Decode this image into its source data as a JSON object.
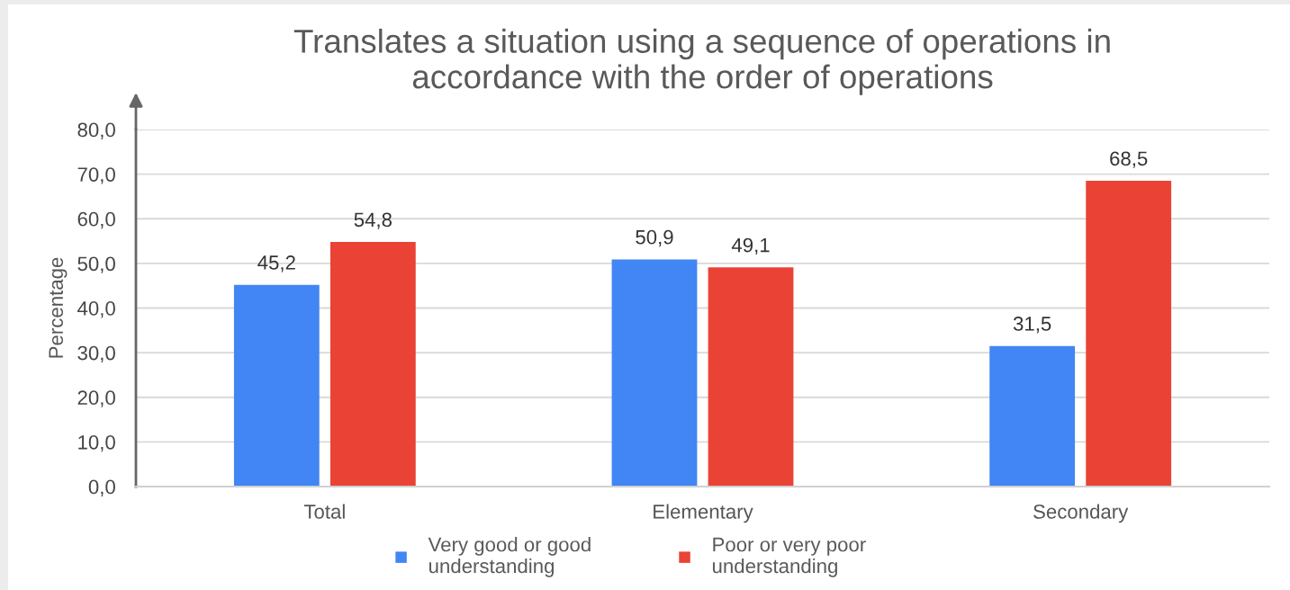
{
  "chart_data": {
    "type": "bar",
    "title": "Translates a situation using a sequence of operations in accordance with the order of operations",
    "ylabel": "Percentage",
    "categories": [
      "Total",
      "Elementary",
      "Secondary"
    ],
    "series": [
      {
        "name": "Very good or good understanding",
        "color": "#4285f4",
        "values": [
          45.2,
          50.9,
          31.5
        ],
        "value_labels": [
          "45,2",
          "50,9",
          "31,5"
        ]
      },
      {
        "name": "Poor or very poor understanding",
        "color": "#ea4335",
        "values": [
          54.8,
          49.1,
          68.5
        ],
        "value_labels": [
          "54,8",
          "49,1",
          "68,5"
        ]
      }
    ],
    "ylim": [
      0,
      80
    ],
    "yticks": [
      {
        "value": 0,
        "label": "0,0"
      },
      {
        "value": 10,
        "label": "10,0"
      },
      {
        "value": 20,
        "label": "20,0"
      },
      {
        "value": 30,
        "label": "30,0"
      },
      {
        "value": 40,
        "label": "40,0"
      },
      {
        "value": 50,
        "label": "50,0"
      },
      {
        "value": 60,
        "label": "60,0"
      },
      {
        "value": 70,
        "label": "70,0"
      },
      {
        "value": 80,
        "label": "80,0"
      }
    ],
    "grid": "y",
    "legend": "bottom"
  }
}
